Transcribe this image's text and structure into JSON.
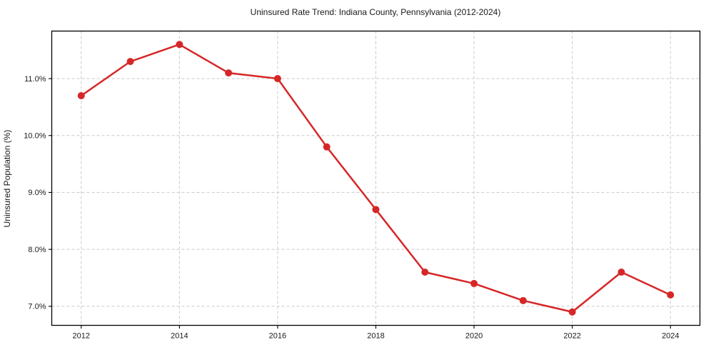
{
  "chart_data": {
    "type": "line",
    "title": "Uninsured Rate Trend: Indiana County, Pennsylvania (2012-2024)",
    "xlabel": "",
    "ylabel": "Uninsured Population (%)",
    "x": [
      2012,
      2013,
      2014,
      2015,
      2016,
      2017,
      2018,
      2019,
      2020,
      2021,
      2022,
      2023,
      2024
    ],
    "values": [
      10.7,
      11.3,
      11.6,
      11.1,
      11.0,
      9.8,
      8.7,
      7.6,
      7.4,
      7.1,
      6.9,
      7.6,
      7.2
    ],
    "xlim": [
      2011.4,
      2024.6
    ],
    "ylim": [
      6.665,
      11.835
    ],
    "xticks": [
      2012,
      2014,
      2016,
      2018,
      2020,
      2022,
      2024
    ],
    "xtick_labels": [
      "2012",
      "2014",
      "2016",
      "2018",
      "2020",
      "2022",
      "2024"
    ],
    "yticks": [
      7,
      8,
      9,
      10,
      11
    ],
    "ytick_labels": [
      "7.0%",
      "8.0%",
      "9.0%",
      "10.0%",
      "11.0%"
    ],
    "grid": true,
    "grid_style": "dashed",
    "legend": "none",
    "marker": "o",
    "colors": {
      "line": "#d62728",
      "marker": "#d62728",
      "grid": "#c9c9c9",
      "spine": "#000000",
      "text": "#1a1a1a",
      "background": "#ffffff"
    }
  }
}
